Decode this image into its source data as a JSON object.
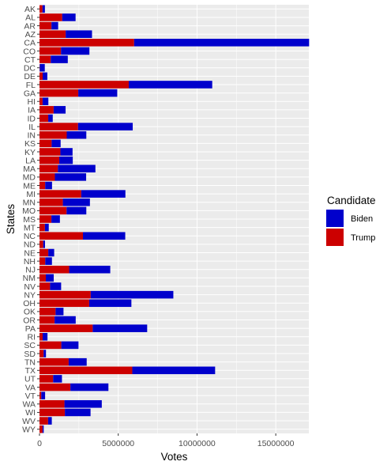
{
  "chart_data": {
    "type": "bar",
    "orientation": "horizontal",
    "stacked": true,
    "xlabel": "Votes",
    "ylabel": "States",
    "xlim": [
      0,
      17100000
    ],
    "xticks": [
      0,
      5000000,
      10000000,
      15000000
    ],
    "xtick_labels": [
      "0",
      "5000000",
      "10000000",
      "15000000"
    ],
    "grid": true,
    "legend_title": "Candidate",
    "legend_position": "right",
    "categories": [
      "AK",
      "AL",
      "AR",
      "AZ",
      "CA",
      "CO",
      "CT",
      "DC",
      "DE",
      "FL",
      "GA",
      "HI",
      "IA",
      "ID",
      "IL",
      "IN",
      "KS",
      "KY",
      "LA",
      "MA",
      "MD",
      "ME",
      "MI",
      "MN",
      "MO",
      "MS",
      "MT",
      "NC",
      "ND",
      "NE",
      "NH",
      "NJ",
      "NM",
      "NV",
      "NY",
      "OH",
      "OK",
      "OR",
      "PA",
      "RI",
      "SC",
      "SD",
      "TN",
      "TX",
      "UT",
      "VA",
      "VT",
      "WA",
      "WI",
      "WV",
      "WY"
    ],
    "series": [
      {
        "name": "Biden",
        "color": "#0000cc",
        "values": [
          153778,
          849624,
          423932,
          1672143,
          11110250,
          1804352,
          1080831,
          317323,
          296268,
          5297045,
          2473633,
          366130,
          759061,
          287021,
          3471915,
          1242416,
          570323,
          772474,
          856034,
          2382202,
          1985023,
          435072,
          2804040,
          1717077,
          1253014,
          539398,
          244786,
          2684292,
          114902,
          374583,
          424937,
          2608335,
          501614,
          703486,
          5244886,
          2679165,
          503890,
          1340383,
          3458229,
          307486,
          1091541,
          150471,
          1143711,
          5259126,
          560282,
          2413568,
          242820,
          2369612,
          1630866,
          235984,
          73491
        ]
      },
      {
        "name": "Trump",
        "color": "#cc0000",
        "values": [
          189951,
          1441170,
          760647,
          1661686,
          6006429,
          1364607,
          715291,
          18586,
          200603,
          5668731,
          2461854,
          196864,
          897672,
          554119,
          2446891,
          1729519,
          771406,
          1326646,
          1255776,
          1167202,
          976414,
          360737,
          2649852,
          1484065,
          1718736,
          756764,
          343602,
          2758775,
          235595,
          556846,
          365660,
          1883274,
          401894,
          669890,
          3251997,
          3154834,
          1020280,
          958448,
          3377674,
          199922,
          1385103,
          261043,
          1852475,
          5890347,
          865140,
          1962430,
          112704,
          1584651,
          1610184,
          545382,
          193559
        ]
      }
    ]
  }
}
